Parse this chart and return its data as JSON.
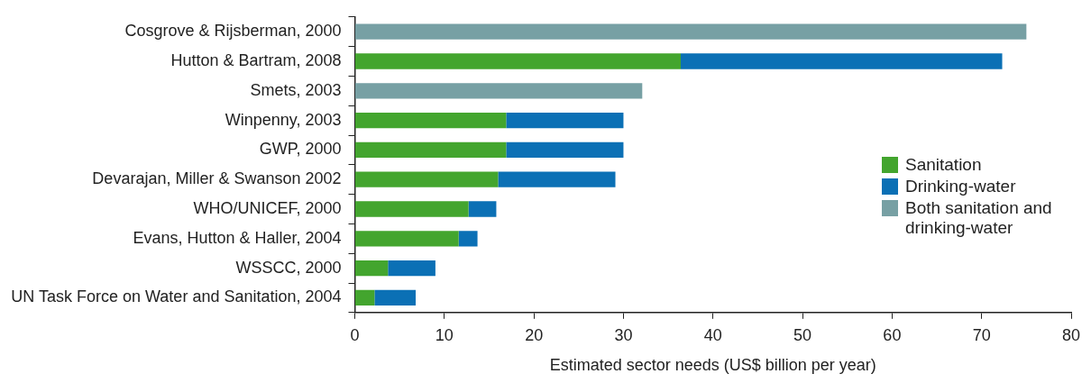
{
  "chart_data": {
    "type": "bar",
    "orientation": "horizontal",
    "stacked": true,
    "xlabel": "Estimated sector needs (US$ billion per year)",
    "categories": [
      "Cosgrove & Rijsberman, 2000",
      "Hutton & Bartram, 2008",
      "Smets, 2003",
      "Winpenny, 2003",
      "GWP, 2000",
      "Devarajan, Miller & Swanson 2002",
      "WHO/UNICEF, 2000",
      "Evans, Hutton & Haller, 2004",
      "WSSCC, 2000",
      "UN Task Force on Water and Sanitation, 2004"
    ],
    "series": [
      {
        "name": "Sanitation",
        "color": "#43a52e",
        "values": [
          null,
          36.4,
          null,
          16.9,
          16.9,
          16.0,
          12.7,
          11.6,
          3.7,
          2.2
        ]
      },
      {
        "name": "Drinking-water",
        "color": "#0b70b5",
        "values": [
          null,
          35.9,
          null,
          13.1,
          13.1,
          13.1,
          3.1,
          2.1,
          5.3,
          4.6
        ]
      },
      {
        "name": "Both sanitation and drinking-water",
        "color": "#77a0a4",
        "values": [
          75.0,
          null,
          32.1,
          null,
          null,
          null,
          null,
          null,
          null,
          null
        ]
      }
    ],
    "xlim": [
      0,
      80
    ],
    "xticks": [
      0,
      10,
      20,
      30,
      40,
      50,
      60,
      70,
      80
    ],
    "grid": false,
    "legend": "right"
  }
}
